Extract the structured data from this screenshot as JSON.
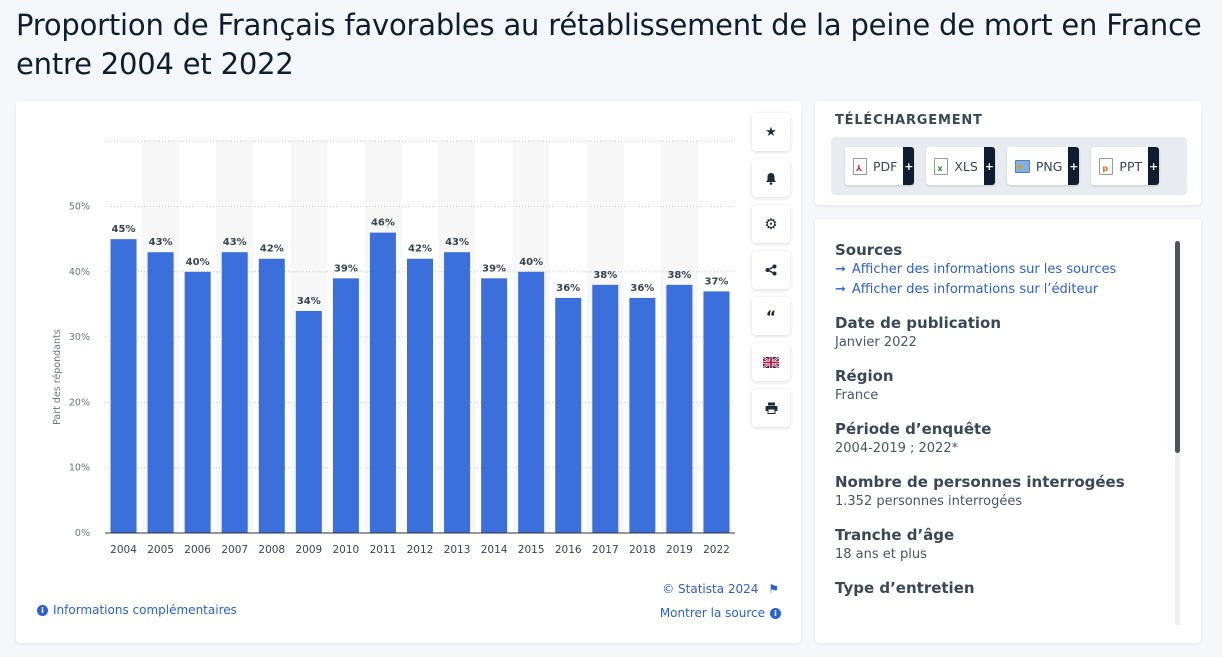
{
  "page": {
    "title": "Proportion de Français favorables au rétablissement de la peine de mort en France entre 2004 et 2022"
  },
  "chart_data": {
    "type": "bar",
    "title": "",
    "xlabel": "",
    "ylabel": "Part des répondants",
    "ylim": [
      0,
      60
    ],
    "yticks": [
      "0%",
      "10%",
      "20%",
      "30%",
      "40%",
      "50%"
    ],
    "categories": [
      "2004",
      "2005",
      "2006",
      "2007",
      "2008",
      "2009",
      "2010",
      "2011",
      "2012",
      "2013",
      "2014",
      "2015",
      "2016",
      "2017",
      "2018",
      "2019",
      "2022"
    ],
    "values": [
      45,
      43,
      40,
      43,
      42,
      34,
      39,
      46,
      42,
      43,
      39,
      40,
      36,
      38,
      36,
      38,
      37
    ],
    "value_labels": [
      "45%",
      "43%",
      "40%",
      "43%",
      "42%",
      "34%",
      "39%",
      "46%",
      "42%",
      "43%",
      "39%",
      "40%",
      "36%",
      "38%",
      "36%",
      "38%",
      "37%"
    ],
    "bar_color": "#3a6fdc",
    "grid": true,
    "legend": "none"
  },
  "chart_footer": {
    "copyright": "© Statista 2024",
    "more_info": "Informations complémentaires",
    "show_source": "Montrer la source"
  },
  "tools": [
    "star-icon",
    "bell-icon",
    "gear-icon",
    "share-icon",
    "quote-icon",
    "flag-icon",
    "print-icon"
  ],
  "download": {
    "title": "TÉLÉCHARGEMENT",
    "buttons": [
      {
        "label": "PDF",
        "plus": "+",
        "icon": "pdf-icon"
      },
      {
        "label": "XLS",
        "plus": "+",
        "icon": "xls-icon"
      },
      {
        "label": "PNG",
        "plus": "+",
        "icon": "png-icon"
      },
      {
        "label": "PPT",
        "plus": "+",
        "icon": "ppt-icon"
      }
    ]
  },
  "info": {
    "sources_heading": "Sources",
    "source_link_1": "Afficher des informations sur les sources",
    "source_link_2": "Afficher des informations sur l’éditeur",
    "pub_date_heading": "Date de publication",
    "pub_date_value": "Janvier 2022",
    "region_heading": "Région",
    "region_value": "France",
    "period_heading": "Période d’enquête",
    "period_value": "2004-2019 ; 2022*",
    "respondents_heading": "Nombre de personnes interrogées",
    "respondents_value": "1.352 personnes interrogées",
    "age_heading": "Tranche d’âge",
    "age_value": "18 ans et plus",
    "interview_heading": "Type d’entretien"
  },
  "colors": {
    "accent": "#2b5fd9",
    "bar": "#3a6fdc",
    "dark": "#0f1e2e"
  }
}
